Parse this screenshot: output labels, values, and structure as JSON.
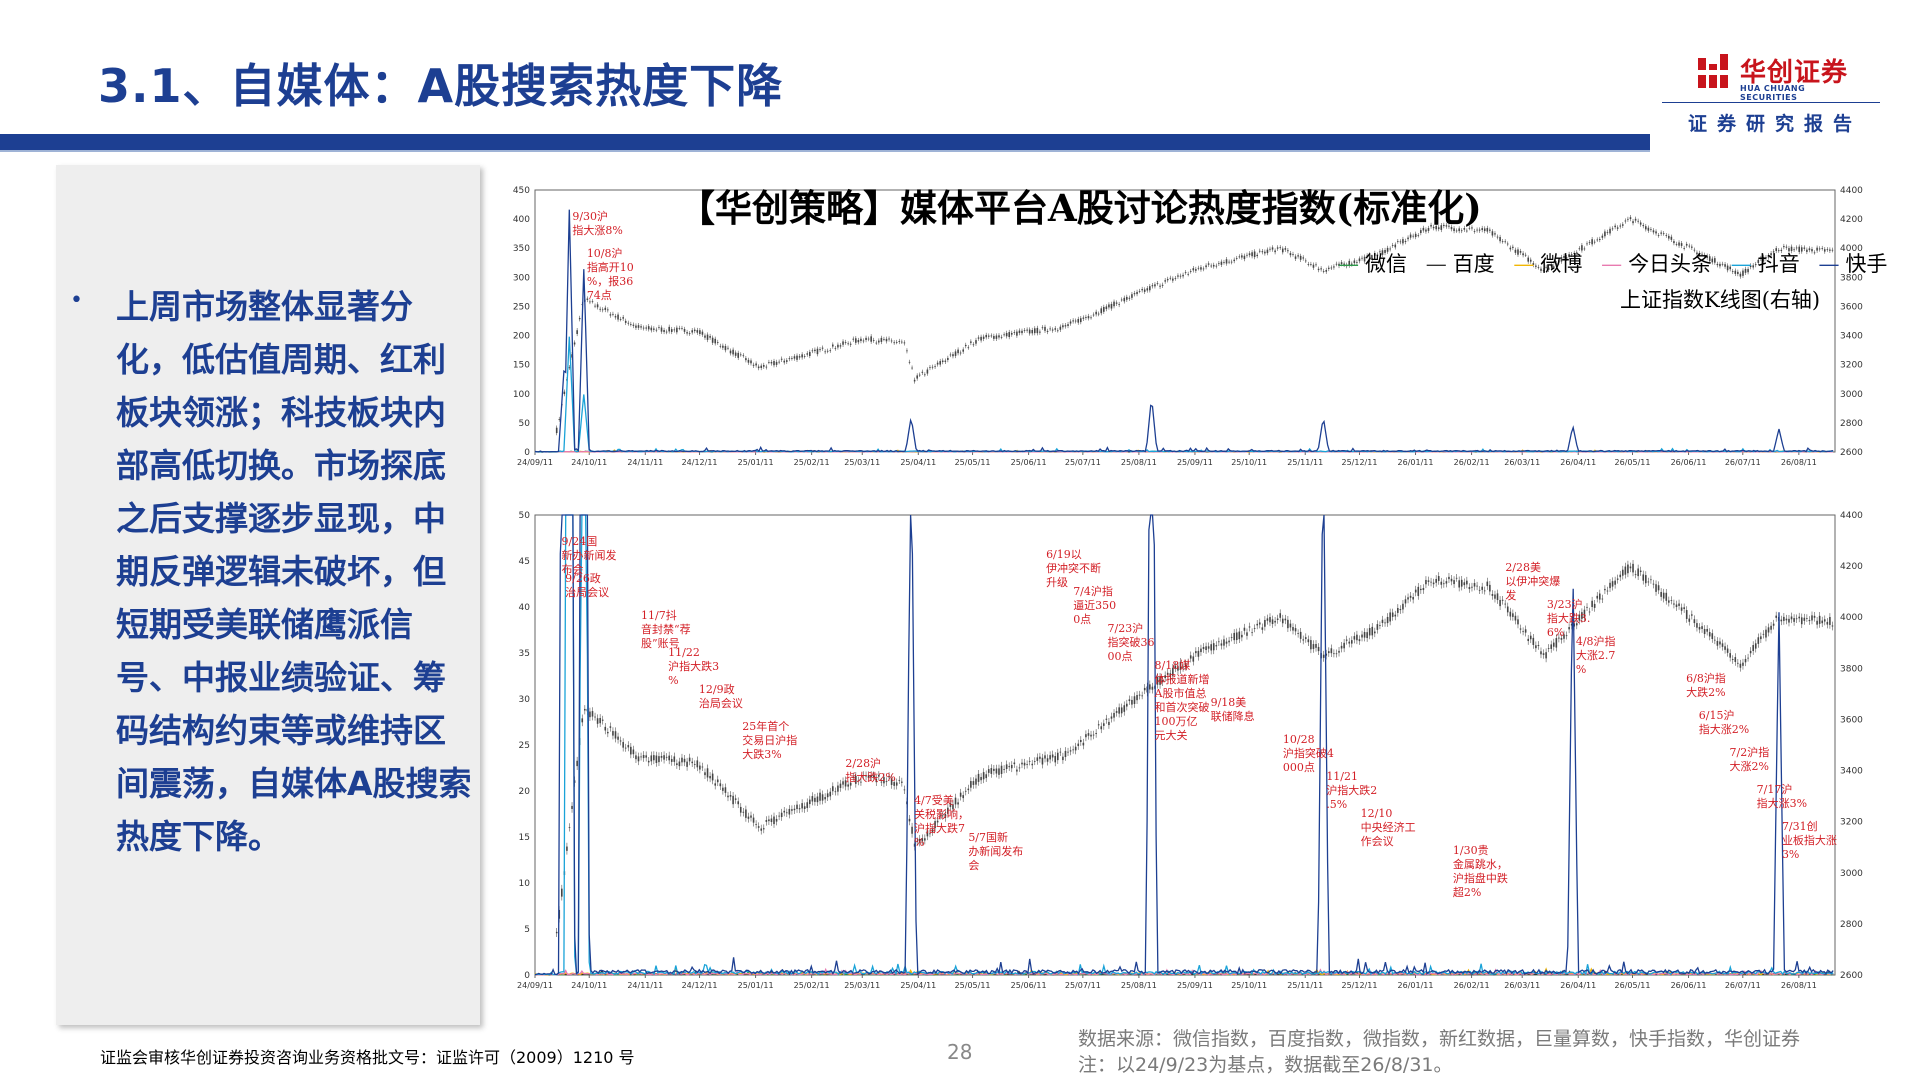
{
  "header": {
    "title": "3.1、自媒体：A股搜索热度下降",
    "logo_name": "华创证券",
    "logo_en": "HUA CHUANG SECURITIES",
    "report_tag": "证券研究报告",
    "brand_color": "#1d3f92",
    "logo_color": "#c8141c"
  },
  "sidebar": {
    "bullet": "•",
    "text": "上周市场整体显著分化，低估值周期、红利板块领涨；科技板块内部高低切换。市场探底之后支撑逐步显现，中期反弹逻辑未破坏，但短期受美联储鹰派信号、中报业绩验证、筹码结构约束等或维持区间震荡，自媒体A股搜索热度下降。"
  },
  "chart_data": [
    {
      "type": "line",
      "title": "【华创策略】媒体平台A股讨论热度指数(标准化)",
      "legend": [
        "微信",
        "百度",
        "微博",
        "今日头条",
        "抖音",
        "快手",
        "上证指数K线图(右轴)"
      ],
      "x_ticks": [
        "24/09/11",
        "24/10/11",
        "24/11/11",
        "24/12/11",
        "25/01/11",
        "25/02/11",
        "25/03/11",
        "25/04/11",
        "25/05/11",
        "25/06/11",
        "25/07/11",
        "25/08/11",
        "25/09/11",
        "25/10/11",
        "25/11/11",
        "25/12/11",
        "26/01/11",
        "26/02/11",
        "26/03/11",
        "26/04/11",
        "26/05/11",
        "26/06/11",
        "26/07/11",
        "26/08/11"
      ],
      "y_left_ticks": [
        0,
        50,
        100,
        150,
        200,
        250,
        300,
        350,
        400,
        450
      ],
      "y_right_ticks": [
        2600,
        2800,
        3000,
        3200,
        3400,
        3600,
        3800,
        4000,
        4200,
        4400
      ],
      "ylim_left": [
        0,
        450
      ],
      "ylim_right": [
        2600,
        4400
      ],
      "series": [
        {
          "name": "快手",
          "color": "#1d3f92",
          "peaks": [
            {
              "x": "24/09/27",
              "y": 140
            },
            {
              "x": "24/09/30",
              "y": 420
            },
            {
              "x": "24/10/08",
              "y": 318
            },
            {
              "x": "25/04/07",
              "y": 60
            },
            {
              "x": "25/08/18",
              "y": 95
            },
            {
              "x": "25/11/21",
              "y": 60
            },
            {
              "x": "26/04/08",
              "y": 45
            },
            {
              "x": "26/07/31",
              "y": 40
            }
          ]
        },
        {
          "name": "抖音",
          "color": "#1aa3d8",
          "peaks": [
            {
              "x": "24/09/30",
              "y": 200
            },
            {
              "x": "24/10/08",
              "y": 100
            }
          ]
        },
        {
          "name": "今日头条",
          "color": "#e87ab0",
          "peaks": []
        },
        {
          "name": "微博",
          "color": "#f2b705",
          "peaks": []
        },
        {
          "name": "百度",
          "color": "#333333",
          "peaks": []
        },
        {
          "name": "微信",
          "color": "#2e9a4b",
          "peaks": []
        }
      ],
      "annotations": [
        {
          "x": "24/09/30",
          "text": "9/30沪指大涨8%"
        },
        {
          "x": "24/10/08",
          "text": "10/8沪指高开10%，报3674点"
        }
      ]
    },
    {
      "type": "line",
      "title": "",
      "x_ticks": [
        "24/09/11",
        "24/10/11",
        "24/11/11",
        "24/12/11",
        "25/01/11",
        "25/02/11",
        "25/03/11",
        "25/04/11",
        "25/05/11",
        "25/06/11",
        "25/07/11",
        "25/08/11",
        "25/09/11",
        "25/10/11",
        "25/11/11",
        "25/12/11",
        "26/01/11",
        "26/02/11",
        "26/03/11",
        "26/04/11",
        "26/05/11",
        "26/06/11",
        "26/07/11",
        "26/08/11"
      ],
      "y_left_ticks": [
        0,
        5,
        10,
        15,
        20,
        25,
        30,
        35,
        40,
        45,
        50
      ],
      "y_right_ticks": [
        2600,
        2800,
        3000,
        3200,
        3400,
        3600,
        3800,
        4000,
        4200,
        4400
      ],
      "ylim_left": [
        0,
        50
      ],
      "ylim_right": [
        2600,
        4400
      ],
      "annotations": [
        {
          "x": "24/09/24",
          "text": "9/24国新办新闻发布会"
        },
        {
          "x": "24/09/26",
          "text": "9/26政治局会议"
        },
        {
          "x": "24/11/07",
          "text": "11/7抖音封禁“荐股”账号"
        },
        {
          "x": "24/11/22",
          "text": "11/22沪指大跌3%"
        },
        {
          "x": "24/12/09",
          "text": "12/9政治局会议"
        },
        {
          "x": "25/01/02",
          "text": "25年首个交易日沪指大跌3%"
        },
        {
          "x": "25/02/28",
          "text": "2/28沪指大跌2%"
        },
        {
          "x": "25/04/07",
          "text": "4/7受美关税影响，沪指大跌7%"
        },
        {
          "x": "25/05/07",
          "text": "5/7国新办新闻发布会"
        },
        {
          "x": "25/06/19",
          "text": "6/19以伊冲突不断升级"
        },
        {
          "x": "25/07/04",
          "text": "7/4沪指逼近3500点"
        },
        {
          "x": "25/07/23",
          "text": "7/23沪指突破3600点"
        },
        {
          "x": "25/08/18",
          "text": "8/18媒体报道新增A股市值总和首次突破100万亿元大关"
        },
        {
          "x": "25/09/18",
          "text": "9/18美联储降息"
        },
        {
          "x": "25/10/28",
          "text": "10/28沪指突破4000点"
        },
        {
          "x": "25/11/21",
          "text": "11/21沪指大跌2.5%"
        },
        {
          "x": "25/12/10",
          "text": "12/10中央经济工作会议"
        },
        {
          "x": "26/01/30",
          "text": "1/30贵金属跳水，沪指盘中跌超2%"
        },
        {
          "x": "26/02/28",
          "text": "2/28美以伊冲突爆发"
        },
        {
          "x": "26/03/23",
          "text": "3/23沪指大跌3.6%"
        },
        {
          "x": "26/04/08",
          "text": "4/8沪指大涨2.7%"
        },
        {
          "x": "26/06/08",
          "text": "6/8沪指大跌2%"
        },
        {
          "x": "26/06/15",
          "text": "6/15沪指大涨2%"
        },
        {
          "x": "26/07/02",
          "text": "7/2沪指大涨2%"
        },
        {
          "x": "26/07/17",
          "text": "7/17沪指大涨3%"
        },
        {
          "x": "26/07/31",
          "text": "7/31创业板指大涨3%"
        }
      ]
    }
  ],
  "footer": {
    "license": "证监会审核华创证券投资咨询业务资格批文号：证监许可（2009）1210 号",
    "page": "28",
    "source": "数据来源：微信指数，百度指数，微指数，新红数据，巨量算数，快手指数，华创证券",
    "note": "注：以24/9/23为基点，数据截至26/8/31。"
  }
}
